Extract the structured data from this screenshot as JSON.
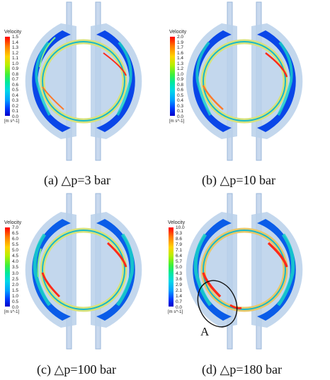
{
  "panels": [
    {
      "caption": "(a)  △p=3  bar",
      "legend": {
        "title": "Velocity",
        "ticks": [
          "1.5",
          "1.4",
          "1.3",
          "1.2",
          "1.1",
          "1.0",
          "0.9",
          "0.8",
          "0.7",
          "0.6",
          "0.5",
          "0.4",
          "0.3",
          "0.2",
          "0.1",
          "0.0"
        ],
        "unit": "[m s^-1]"
      }
    },
    {
      "caption": "(b)  △p=10  bar",
      "legend": {
        "title": "Velocity",
        "ticks": [
          "2.0",
          "1.9",
          "1.7",
          "1.6",
          "1.4",
          "1.3",
          "1.2",
          "1.0",
          "0.9",
          "0.8",
          "0.6",
          "0.5",
          "0.4",
          "0.3",
          "0.1",
          "0.0"
        ],
        "unit": "[m s^-1]"
      }
    },
    {
      "caption": "(c)  △p=100  bar",
      "legend": {
        "title": "Velocity",
        "ticks": [
          "7.0",
          "6.5",
          "6.0",
          "5.5",
          "5.0",
          "4.5",
          "4.0",
          "3.5",
          "3.0",
          "2.5",
          "2.0",
          "1.5",
          "1.0",
          "0.5",
          "0.0"
        ],
        "unit": "[m s^-1]"
      }
    },
    {
      "caption": "(d)  △p=180  bar",
      "legend": {
        "title": "Velocity",
        "ticks": [
          "10.0",
          "9.3",
          "8.6",
          "7.9",
          "7.1",
          "6.4",
          "5.7",
          "5.0",
          "4.3",
          "3.6",
          "2.9",
          "2.1",
          "1.4",
          "0.7",
          "0.0"
        ],
        "unit": "[m s^-1]"
      },
      "marker": "A"
    }
  ],
  "colors": {
    "housing": "#b9d0ea",
    "low_velocity": "#0a46e8",
    "mid_velocity": "#18d2c8",
    "ring": "#d8e27c",
    "ring_hot": "#ff7a2a",
    "hot": "#ff2a1a"
  }
}
